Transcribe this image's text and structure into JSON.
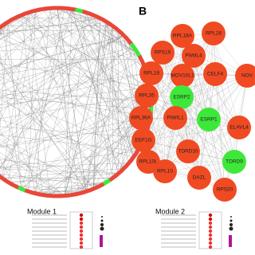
{
  "panel_label": "B",
  "network": {
    "nodes": [
      {
        "label": "RPL28",
        "color": "#f04a23"
      },
      {
        "label": "RPL18A",
        "color": "#f04a23"
      },
      {
        "label": "RPS19",
        "color": "#f04a23"
      },
      {
        "label": "PIWIL4",
        "color": "#f04a23"
      },
      {
        "label": "RPL18",
        "color": "#f04a23"
      },
      {
        "label": "MOV10L1",
        "color": "#f04a23"
      },
      {
        "label": "CELF4",
        "color": "#f04a23"
      },
      {
        "label": "NOV",
        "color": "#f04a23"
      },
      {
        "label": "RPL35",
        "color": "#f04a23"
      },
      {
        "label": "ESRP2",
        "color": "#3ee83a"
      },
      {
        "label": "RPL36A",
        "color": "#f04a23"
      },
      {
        "label": "PIWIL1",
        "color": "#f04a23"
      },
      {
        "label": "ESRP1",
        "color": "#3ee83a"
      },
      {
        "label": "EEF1G",
        "color": "#f04a23"
      },
      {
        "label": "ELAVL4",
        "color": "#f04a23"
      },
      {
        "label": "RPL10L",
        "color": "#f04a23"
      },
      {
        "label": "TDRD10",
        "color": "#f04a23"
      },
      {
        "label": "RPL10",
        "color": "#f04a23"
      },
      {
        "label": "DAZL",
        "color": "#f04a23"
      },
      {
        "label": "TDRD9",
        "color": "#3ee83a"
      },
      {
        "label": "RPS20",
        "color": "#f04a23"
      }
    ]
  },
  "modules": [
    "Module 1",
    "Module 2"
  ]
}
